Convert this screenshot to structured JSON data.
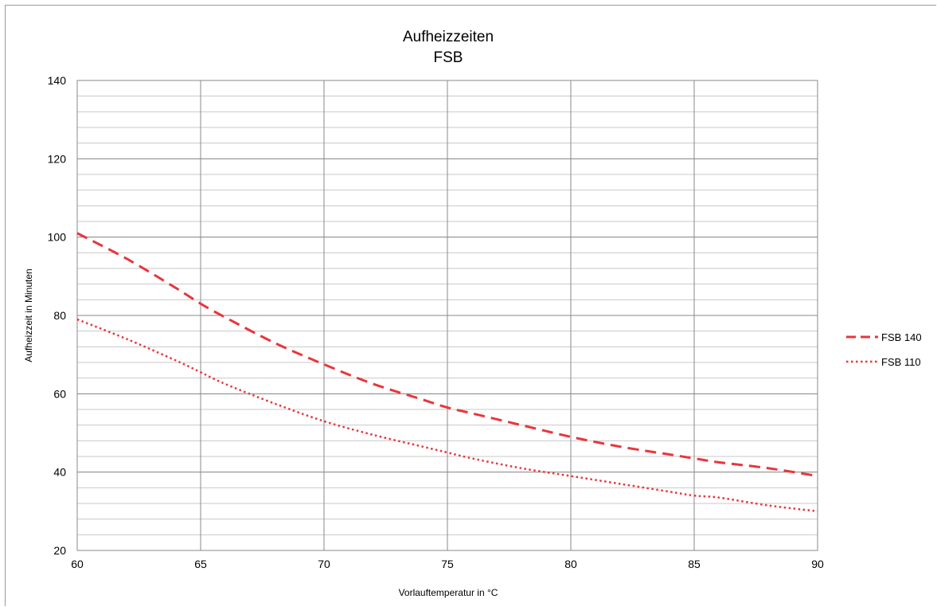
{
  "chart_data": {
    "type": "line",
    "title": "Aufheizzeiten",
    "subtitle": "FSB",
    "xlabel": "Vorlauftemperatur in °C",
    "ylabel": "Aufheizzeit in Minuten",
    "xlim": [
      60,
      90
    ],
    "ylim": [
      20,
      140
    ],
    "x_ticks": [
      60,
      65,
      70,
      75,
      80,
      85,
      90
    ],
    "y_ticks": [
      20,
      40,
      60,
      80,
      100,
      120,
      140
    ],
    "grid": true,
    "legend_position": "right",
    "series": [
      {
        "name": "FSB 140",
        "style": "dashed",
        "color": "#e8363c",
        "x": [
          60,
          62,
          64,
          65,
          66,
          68,
          70,
          72,
          74,
          75,
          76,
          78,
          80,
          82,
          84,
          85,
          86,
          88,
          90
        ],
        "y": [
          101,
          94.5,
          87,
          83,
          79.5,
          73,
          67.5,
          62.5,
          58.5,
          56.5,
          55,
          52,
          49,
          46.5,
          44.5,
          43.5,
          42.5,
          41,
          39
        ]
      },
      {
        "name": "FSB 110",
        "style": "dotted",
        "color": "#e8363c",
        "x": [
          60,
          62,
          64,
          65,
          66,
          68,
          70,
          72,
          74,
          75,
          76,
          78,
          80,
          82,
          84,
          85,
          86,
          88,
          90
        ],
        "y": [
          79,
          74,
          68.5,
          65.5,
          62.5,
          57.5,
          53,
          49.5,
          46.5,
          45,
          43.5,
          41,
          39,
          37,
          35,
          34,
          33.5,
          31.5,
          30
        ]
      }
    ]
  }
}
